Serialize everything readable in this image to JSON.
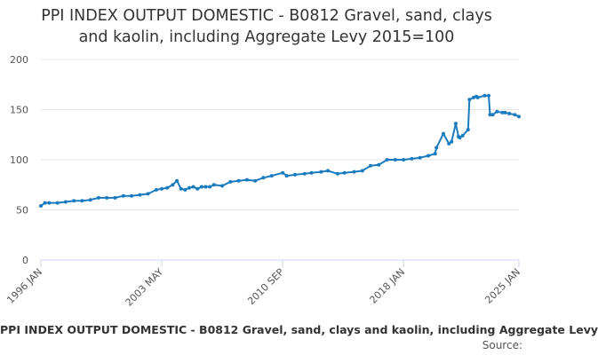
{
  "chart_data": {
    "type": "line",
    "title_lines": [
      "PPI INDEX OUTPUT DOMESTIC - B0812 Gravel, sand, clays",
      "and kaolin, including Aggregate Levy 2015=100"
    ],
    "xlabel": "",
    "ylabel": "",
    "ylim": [
      0,
      200
    ],
    "y_ticks": [
      "0",
      "50",
      "100",
      "150",
      "200"
    ],
    "x_ticks": [
      "1996 JAN",
      "2003 MAY",
      "2010 SEP",
      "2018 JAN",
      "2025 JAN"
    ],
    "x_range": [
      "1996-01",
      "2025-01"
    ],
    "grid": true,
    "line_color": "#1a7bbf",
    "legend_text": "PPI INDEX OUTPUT DOMESTIC - B0812 Gravel, sand, clays and kaolin, including Aggregate Levy",
    "legend_position": "bottom",
    "series": [
      {
        "name": "PPI INDEX OUTPUT DOMESTIC - B0812 Gravel, sand, clays and kaolin, including Aggregate Levy",
        "x": [
          "1996-01",
          "1996-04",
          "1996-07",
          "1997-01",
          "1997-07",
          "1998-01",
          "1998-07",
          "1999-01",
          "1999-07",
          "2000-01",
          "2000-07",
          "2001-01",
          "2001-07",
          "2002-01",
          "2002-07",
          "2003-01",
          "2003-05",
          "2003-09",
          "2004-01",
          "2004-04",
          "2004-07",
          "2004-10",
          "2005-01",
          "2005-04",
          "2005-07",
          "2005-10",
          "2006-01",
          "2006-04",
          "2006-07",
          "2007-01",
          "2007-07",
          "2008-01",
          "2008-07",
          "2009-01",
          "2009-07",
          "2010-01",
          "2010-09",
          "2010-12",
          "2011-06",
          "2012-01",
          "2012-06",
          "2013-01",
          "2013-06",
          "2014-01",
          "2014-06",
          "2015-01",
          "2015-07",
          "2016-01",
          "2016-07",
          "2017-01",
          "2017-07",
          "2018-01",
          "2018-07",
          "2019-01",
          "2019-07",
          "2019-12",
          "2020-01",
          "2020-06",
          "2020-10",
          "2020-12",
          "2021-03",
          "2021-05",
          "2021-06",
          "2021-08",
          "2021-12",
          "2022-01",
          "2022-04",
          "2022-06",
          "2022-07",
          "2022-12",
          "2023-03",
          "2023-04",
          "2023-06",
          "2023-09",
          "2024-01",
          "2024-03",
          "2024-06",
          "2024-10",
          "2025-01"
        ],
        "values": [
          54,
          57,
          57,
          57,
          58,
          59,
          59,
          60,
          62,
          62,
          62,
          64,
          64,
          65,
          66,
          70,
          71,
          72,
          75,
          79,
          71,
          70,
          72,
          73,
          71,
          73,
          73,
          73,
          75,
          74,
          78,
          79,
          80,
          79,
          82,
          84,
          87,
          84,
          85,
          86,
          87,
          88,
          89,
          86,
          87,
          88,
          89,
          94,
          95,
          100,
          100,
          100,
          101,
          102,
          104,
          106,
          112,
          126,
          116,
          118,
          136,
          123,
          122,
          124,
          130,
          160,
          162,
          163,
          162,
          164,
          164,
          145,
          145,
          148,
          147,
          147,
          146,
          145,
          143
        ]
      }
    ]
  },
  "source_label": "Source:"
}
